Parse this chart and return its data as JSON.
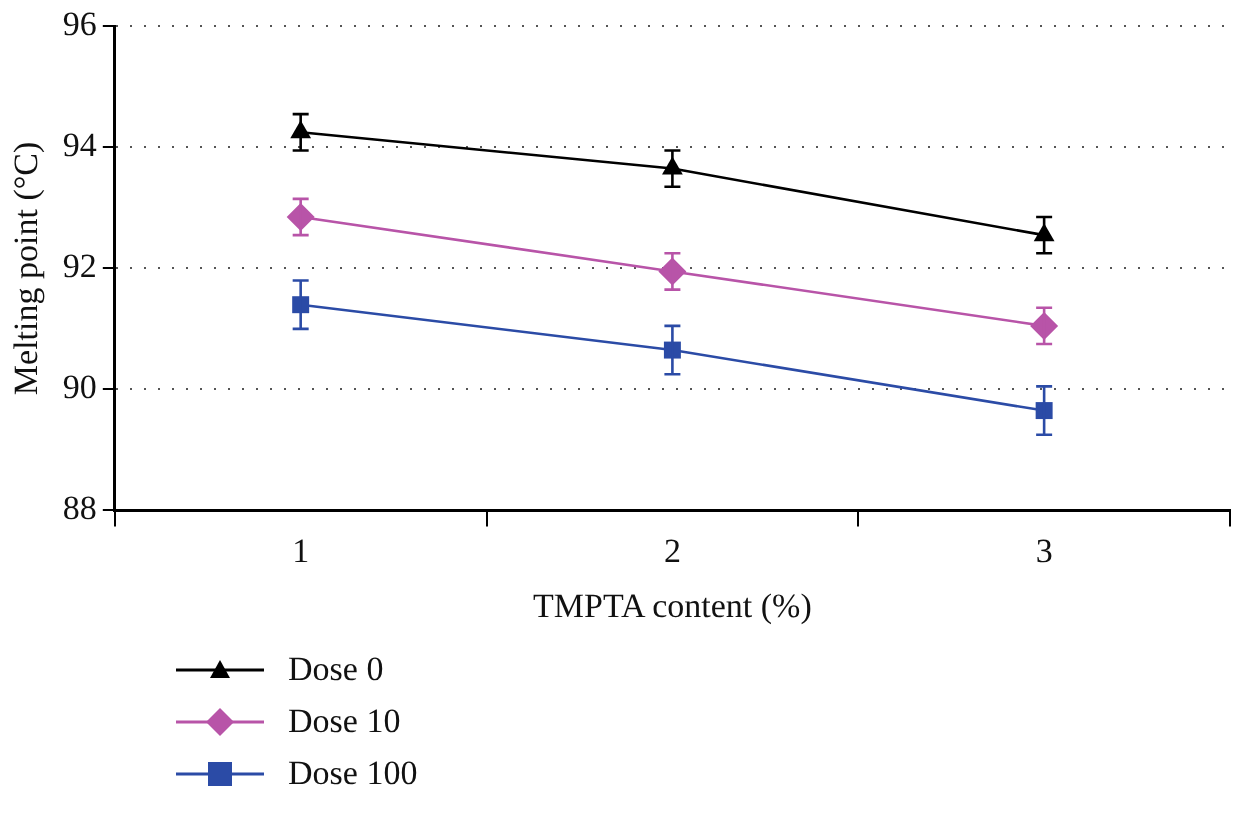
{
  "chart_data": {
    "type": "line",
    "xlabel": "TMPTA content (%)",
    "ylabel": "Melting point (°C)",
    "categories": [
      "1",
      "2",
      "3"
    ],
    "ylim": [
      88,
      96
    ],
    "yticks": [
      88,
      90,
      92,
      94,
      96
    ],
    "grid": "y",
    "legend": "bottom left",
    "line_style": "solid",
    "series": [
      {
        "name": "Dose 0",
        "color": "#000000",
        "marker": "triangle",
        "values": [
          94.25,
          93.65,
          92.55
        ],
        "errors": [
          0.3,
          0.3,
          0.3
        ]
      },
      {
        "name": "Dose 10",
        "color": "#b854a8",
        "marker": "diamond",
        "values": [
          92.85,
          91.95,
          91.05
        ],
        "errors": [
          0.3,
          0.3,
          0.3
        ]
      },
      {
        "name": "Dose 100",
        "color": "#2b4ba6",
        "marker": "square",
        "values": [
          91.4,
          90.65,
          89.65
        ],
        "errors": [
          0.4,
          0.4,
          0.4
        ]
      }
    ]
  }
}
